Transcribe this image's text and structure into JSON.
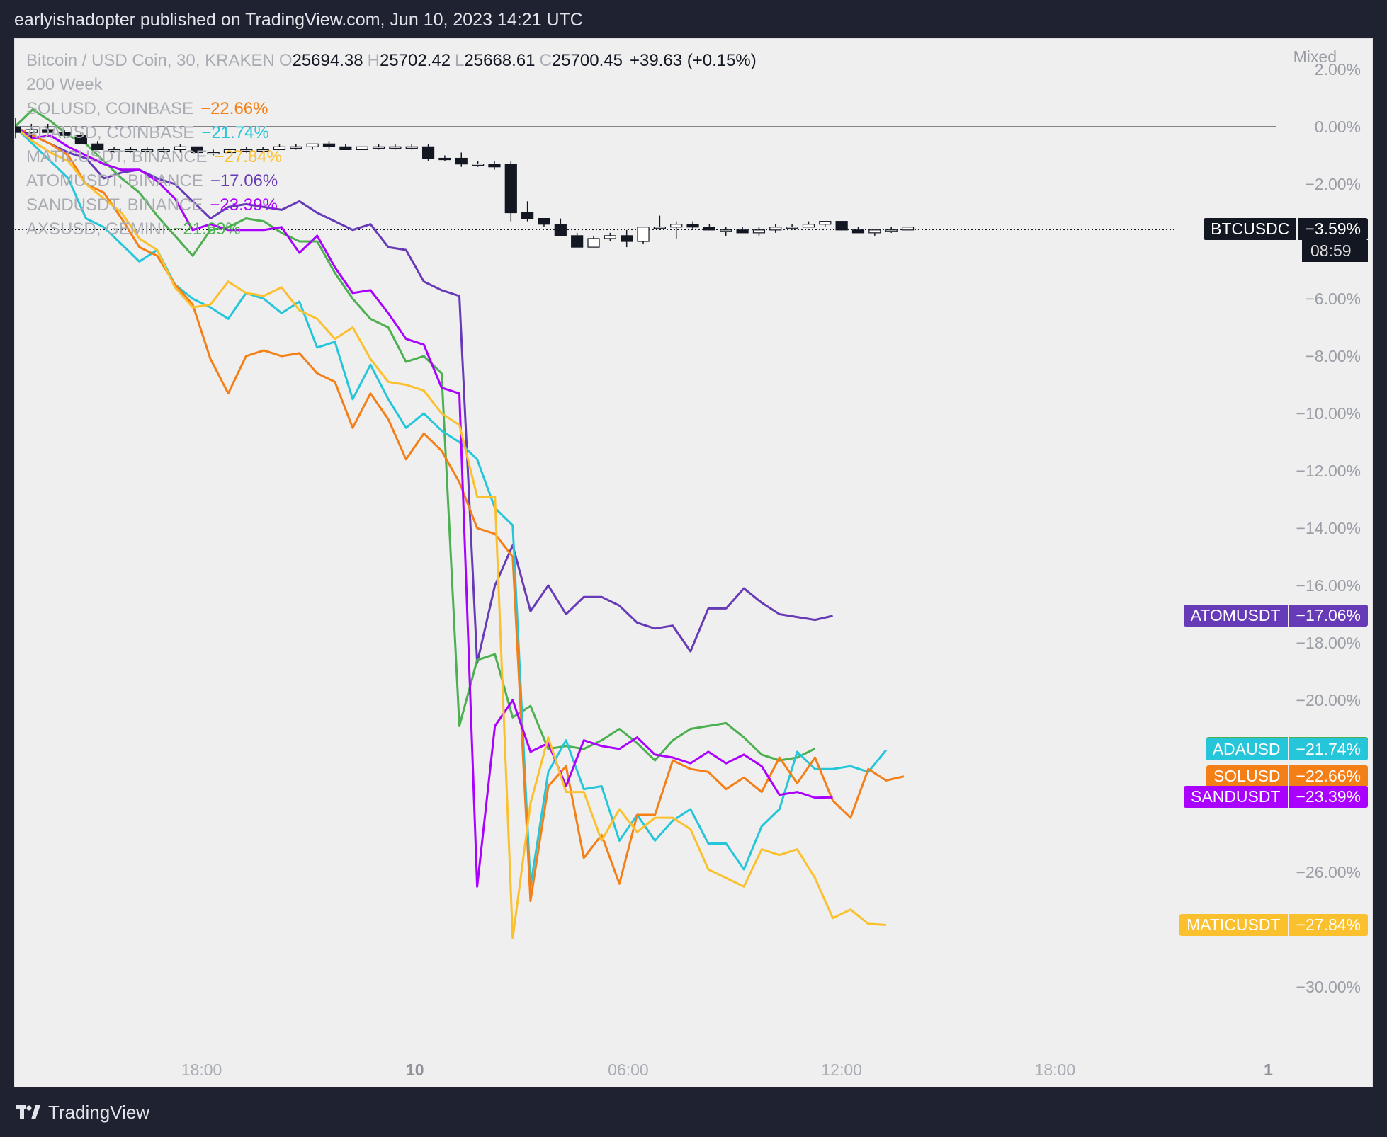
{
  "header": {
    "publisher_text": "earlyishadopter published on TradingView.com, Jun 10, 2023 14:21 UTC"
  },
  "footer": {
    "brand": "TradingView"
  },
  "scale_mode": "Mixed",
  "legend": {
    "main_title": "Bitcoin / USD Coin, 30, KRAKEN",
    "ohlc": [
      {
        "k": "O",
        "v": "25694.38"
      },
      {
        "k": "H",
        "v": "25702.42"
      },
      {
        "k": "L",
        "v": "25668.61"
      },
      {
        "k": "C",
        "v": "25700.45"
      }
    ],
    "change": "+39.63 (+0.15%)",
    "indicator": "200 Week",
    "comparisons": [
      {
        "name": "SOLUSD, COINBASE",
        "value": "−22.66%",
        "color": "#f57f17"
      },
      {
        "name": "ADAUSD, COINBASE",
        "value": "−21.74%",
        "color": "#26c6da"
      },
      {
        "name": "MATICUSDT, BINANCE",
        "value": "−27.84%",
        "color": "#fbc02d"
      },
      {
        "name": "ATOMUSDT, BINANCE",
        "value": "−17.06%",
        "color": "#673ab7"
      },
      {
        "name": "SANDUSDT, BINANCE",
        "value": "−23.39%",
        "color": "#aa00ff"
      },
      {
        "name": "AXSUSD, GEMINI",
        "value": "−21.69%",
        "color": "#4caf50"
      }
    ]
  },
  "chart_data": {
    "type": "line",
    "y_unit": "percent change",
    "ylim": [
      -31,
      3
    ],
    "y_ticks": [
      "2.00%",
      "0.00%",
      "−2.00%",
      "−6.00%",
      "−8.00%",
      "−10.00%",
      "−12.00%",
      "−14.00%",
      "−16.00%",
      "−18.00%",
      "−20.00%",
      "−26.00%",
      "−30.00%"
    ],
    "y_tick_values": [
      2,
      0,
      -2,
      -6,
      -8,
      -10,
      -12,
      -14,
      -16,
      -18,
      -20,
      -26,
      -30
    ],
    "x_ticks": [
      {
        "label": "18:00",
        "bar": 10.5,
        "bold": false
      },
      {
        "label": "10",
        "bar": 22.5,
        "bold": true
      },
      {
        "label": "06:00",
        "bar": 34.5,
        "bold": false
      },
      {
        "label": "12:00",
        "bar": 46.5,
        "bold": false
      },
      {
        "label": "18:00",
        "bar": 58.5,
        "bold": false
      },
      {
        "label": "1",
        "bar": 70.5,
        "bold": true
      }
    ],
    "series": [
      {
        "name": "ATOMUSDT",
        "color": "#673ab7",
        "last": "−17.06%",
        "last_value": -17.06,
        "values": [
          0,
          -0.3,
          -0.6,
          -0.9,
          -1.1,
          -1.8,
          -1.6,
          -1.5,
          -1.8,
          -2,
          -2.6,
          -3.2,
          -2.8,
          -2.7,
          -2.8,
          -2.9,
          -2.6,
          -3,
          -3.3,
          -3.6,
          -3.4,
          -4.2,
          -4.3,
          -5.4,
          -5.7,
          -5.9,
          -18.7,
          -16.0,
          -14.6,
          -16.9,
          -16.0,
          -17.0,
          -16.4,
          -16.4,
          -16.7,
          -17.3,
          -17.5,
          -17.4,
          -18.3,
          -16.8,
          -16.8,
          -16.1,
          -16.6,
          -17.0,
          -17.1,
          -17.2,
          -17.06
        ]
      },
      {
        "name": "AXSUSD",
        "color": "#4caf50",
        "last": "−21.69%",
        "last_value": -21.69,
        "values": [
          0,
          0.6,
          0.2,
          -0.3,
          -0.6,
          -1.2,
          -1.8,
          -2.3,
          -3.1,
          -3.8,
          -4.5,
          -3.6,
          -3.5,
          -3.2,
          -3.3,
          -3.7,
          -4.0,
          -4.0,
          -5.1,
          -6.0,
          -6.7,
          -7.0,
          -8.2,
          -8.0,
          -8.6,
          -20.9,
          -18.6,
          -18.4,
          -20.6,
          -20.2,
          -21.7,
          -21.6,
          -21.7,
          -21.4,
          -21.0,
          -21.5,
          -22.1,
          -21.4,
          -21.0,
          -20.9,
          -20.8,
          -21.3,
          -21.9,
          -22.1,
          -22.0,
          -21.69
        ]
      },
      {
        "name": "ADAUSD",
        "color": "#26c6da",
        "last": "−21.74%",
        "last_value": -21.74,
        "values": [
          0,
          -0.6,
          -1.2,
          -1.8,
          -3.2,
          -3.5,
          -4.1,
          -4.7,
          -4.3,
          -5.5,
          -6.0,
          -6.3,
          -6.7,
          -5.8,
          -6.0,
          -6.5,
          -6.1,
          -7.7,
          -7.5,
          -9.5,
          -8.3,
          -9.5,
          -10.5,
          -10.0,
          -10.6,
          -11.0,
          -11.6,
          -13.3,
          -13.9,
          -26.5,
          -22.5,
          -21.4,
          -23.1,
          -23.0,
          -24.9,
          -24.0,
          -24.9,
          -24.2,
          -23.8,
          -25.0,
          -25.0,
          -25.9,
          -24.4,
          -23.8,
          -21.8,
          -22.4,
          -22.4,
          -22.3,
          -22.5,
          -21.74
        ]
      },
      {
        "name": "SOLUSD",
        "color": "#f57f17",
        "last": "−22.66%",
        "last_value": -22.66,
        "values": [
          0,
          -0.3,
          -0.6,
          -1.0,
          -2.0,
          -2.3,
          -3.2,
          -4.2,
          -4.5,
          -5.5,
          -6.2,
          -8.1,
          -9.3,
          -8.0,
          -7.8,
          -8.0,
          -7.9,
          -8.6,
          -8.9,
          -10.5,
          -9.3,
          -10.2,
          -11.6,
          -10.7,
          -11.3,
          -12.4,
          -14.0,
          -14.2,
          -15.0,
          -27.0,
          -23.0,
          -22.3,
          -25.5,
          -24.7,
          -26.4,
          -24.0,
          -24.0,
          -22.1,
          -22.4,
          -22.5,
          -23.1,
          -22.7,
          -23.2,
          -22.0,
          -22.9,
          -22.0,
          -23.5,
          -24.1,
          -22.4,
          -22.8,
          -22.66
        ]
      },
      {
        "name": "SANDUSDT",
        "color": "#aa00ff",
        "last": "−23.39%",
        "last_value": -23.39,
        "values": [
          0,
          -0.4,
          -0.3,
          -0.7,
          -1.0,
          -1.3,
          -1.5,
          -1.5,
          -1.9,
          -2.5,
          -3.6,
          -3.4,
          -3.6,
          -3.6,
          -3.6,
          -3.5,
          -4.4,
          -3.8,
          -4.9,
          -5.8,
          -5.7,
          -6.5,
          -7.4,
          -7.6,
          -9.1,
          -9.3,
          -26.5,
          -20.9,
          -20.0,
          -21.8,
          -21.5,
          -23.0,
          -21.4,
          -21.6,
          -21.7,
          -21.3,
          -21.9,
          -22.0,
          -22.2,
          -21.8,
          -22.2,
          -21.9,
          -22.3,
          -23.3,
          -23.2,
          -23.4,
          -23.39
        ]
      },
      {
        "name": "MATICUSDT",
        "color": "#fbc02d",
        "last": "−27.84%",
        "last_value": -27.84,
        "values": [
          0,
          -0.5,
          -0.9,
          -1.2,
          -2.0,
          -2.5,
          -3.0,
          -3.9,
          -4.3,
          -5.6,
          -6.3,
          -6.2,
          -5.4,
          -5.8,
          -5.9,
          -5.6,
          -6.4,
          -6.7,
          -7.4,
          -7.0,
          -8.1,
          -8.9,
          -9.0,
          -9.2,
          -10.0,
          -10.4,
          -12.9,
          -12.9,
          -28.3,
          -23.6,
          -21.3,
          -23.2,
          -23.2,
          -24.9,
          -23.8,
          -24.6,
          -24.1,
          -24.1,
          -24.5,
          -25.9,
          -26.2,
          -26.5,
          -25.2,
          -25.4,
          -25.2,
          -26.2,
          -27.6,
          -27.3,
          -27.8,
          -27.84
        ]
      }
    ],
    "btc": {
      "name": "BTCUSDC",
      "last": "−3.59%",
      "last_value": -3.59,
      "countdown": "08:59",
      "color": "#131722",
      "candles": [
        [
          0,
          0.3,
          -0.4,
          -0.2
        ],
        [
          -0.2,
          0.1,
          -0.4,
          -0.1
        ],
        [
          -0.1,
          0.1,
          -0.3,
          -0.2
        ],
        [
          -0.2,
          -0.1,
          -0.4,
          -0.3
        ],
        [
          -0.3,
          -0.2,
          -0.6,
          -0.6
        ],
        [
          -0.6,
          -0.5,
          -0.8,
          -0.8
        ],
        [
          -0.8,
          -0.7,
          -0.9,
          -0.8
        ],
        [
          -0.8,
          -0.7,
          -0.9,
          -0.8
        ],
        [
          -0.8,
          -0.7,
          -0.9,
          -0.8
        ],
        [
          -0.8,
          -0.7,
          -0.9,
          -0.8
        ],
        [
          -0.8,
          -0.6,
          -0.9,
          -0.7
        ],
        [
          -0.7,
          -0.7,
          -0.9,
          -0.9
        ],
        [
          -0.9,
          -0.8,
          -1.0,
          -0.9
        ],
        [
          -0.9,
          -0.8,
          -0.9,
          -0.8
        ],
        [
          -0.8,
          -0.7,
          -0.9,
          -0.8
        ],
        [
          -0.8,
          -0.7,
          -0.9,
          -0.8
        ],
        [
          -0.8,
          -0.6,
          -0.8,
          -0.7
        ],
        [
          -0.7,
          -0.6,
          -0.8,
          -0.7
        ],
        [
          -0.7,
          -0.6,
          -0.8,
          -0.6
        ],
        [
          -0.6,
          -0.5,
          -0.8,
          -0.7
        ],
        [
          -0.7,
          -0.6,
          -0.8,
          -0.8
        ],
        [
          -0.8,
          -0.7,
          -0.8,
          -0.7
        ],
        [
          -0.7,
          -0.6,
          -0.8,
          -0.7
        ],
        [
          -0.7,
          -0.6,
          -0.8,
          -0.7
        ],
        [
          -0.7,
          -0.6,
          -0.8,
          -0.7
        ],
        [
          -0.7,
          -0.6,
          -1.2,
          -1.1
        ],
        [
          -1.1,
          -1.0,
          -1.2,
          -1.1
        ],
        [
          -1.1,
          -0.9,
          -1.4,
          -1.3
        ],
        [
          -1.3,
          -1.2,
          -1.4,
          -1.3
        ],
        [
          -1.3,
          -1.2,
          -1.5,
          -1.4
        ],
        [
          -1.3,
          -1.2,
          -3.3,
          -3.0
        ],
        [
          -3.0,
          -2.6,
          -3.3,
          -3.2
        ],
        [
          -3.2,
          -3.2,
          -3.5,
          -3.4
        ],
        [
          -3.4,
          -3.2,
          -3.8,
          -3.8
        ],
        [
          -3.8,
          -3.7,
          -4.2,
          -4.2
        ],
        [
          -4.2,
          -3.8,
          -4.2,
          -3.9
        ],
        [
          -3.9,
          -3.7,
          -4.0,
          -3.8
        ],
        [
          -3.8,
          -3.6,
          -4.2,
          -4.0
        ],
        [
          -4.0,
          -3.5,
          -4.1,
          -3.5
        ],
        [
          -3.5,
          -3.1,
          -3.6,
          -3.5
        ],
        [
          -3.5,
          -3.3,
          -3.9,
          -3.4
        ],
        [
          -3.4,
          -3.3,
          -3.6,
          -3.5
        ],
        [
          -3.5,
          -3.4,
          -3.6,
          -3.6
        ],
        [
          -3.6,
          -3.5,
          -3.8,
          -3.6
        ],
        [
          -3.6,
          -3.5,
          -3.7,
          -3.7
        ],
        [
          -3.7,
          -3.5,
          -3.8,
          -3.6
        ],
        [
          -3.6,
          -3.4,
          -3.7,
          -3.5
        ],
        [
          -3.5,
          -3.4,
          -3.6,
          -3.5
        ],
        [
          -3.5,
          -3.3,
          -3.5,
          -3.4
        ],
        [
          -3.4,
          -3.3,
          -3.5,
          -3.3
        ],
        [
          -3.3,
          -3.3,
          -3.6,
          -3.6
        ],
        [
          -3.6,
          -3.5,
          -3.7,
          -3.7
        ],
        [
          -3.7,
          -3.6,
          -3.8,
          -3.6
        ],
        [
          -3.6,
          -3.5,
          -3.7,
          -3.6
        ],
        [
          -3.6,
          -3.5,
          -3.6,
          -3.5
        ]
      ]
    },
    "zero_line": true,
    "grid": false,
    "legend_position": "top-left"
  }
}
